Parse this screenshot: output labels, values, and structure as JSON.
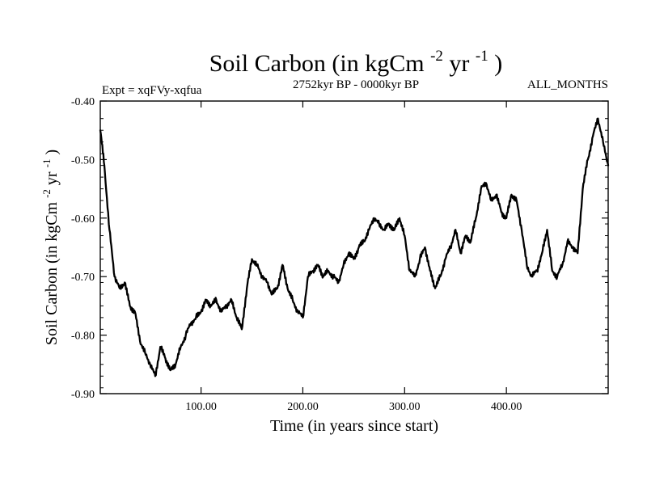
{
  "chart_data": {
    "type": "line",
    "title": "Soil Carbon (in kgCm",
    "title_sup1": "-2",
    "title_mid": "yr",
    "title_sup2": "-1",
    "title_end": ")",
    "subtitle": "2752kyr BP - 0000kyr BP",
    "left_label": "Expt = xqFVy-xqfua",
    "right_label": "ALL_MONTHS",
    "xlabel": "Time (in years since start)",
    "ylabel": "Soil Carbon (in kgCm",
    "ylabel_sup1": "-2",
    "ylabel_mid": "yr",
    "ylabel_sup2": "-1",
    "ylabel_end": ")",
    "xlim": [
      1,
      500
    ],
    "ylim": [
      -0.9,
      -0.4
    ],
    "x_ticks": [
      100,
      200,
      300,
      400
    ],
    "x_tick_labels": [
      "100.00",
      "200.00",
      "300.00",
      "400.00"
    ],
    "y_ticks": [
      -0.4,
      -0.5,
      -0.6,
      -0.7,
      -0.8,
      -0.9
    ],
    "y_tick_labels": [
      "-0.40",
      "-0.50",
      "-0.60",
      "-0.70",
      "-0.80",
      "-0.90"
    ],
    "color": "#000000",
    "series": [
      {
        "name": "Soil Carbon",
        "x": [
          1,
          5,
          10,
          15,
          20,
          25,
          30,
          35,
          40,
          45,
          50,
          55,
          60,
          65,
          70,
          75,
          80,
          85,
          90,
          95,
          100,
          105,
          110,
          115,
          120,
          125,
          130,
          135,
          140,
          145,
          150,
          155,
          160,
          165,
          170,
          175,
          180,
          185,
          190,
          195,
          200,
          205,
          210,
          215,
          220,
          225,
          230,
          235,
          240,
          245,
          250,
          255,
          260,
          265,
          270,
          275,
          280,
          285,
          290,
          295,
          300,
          305,
          310,
          315,
          320,
          325,
          330,
          335,
          340,
          345,
          350,
          355,
          360,
          365,
          370,
          375,
          380,
          385,
          390,
          395,
          400,
          405,
          410,
          415,
          420,
          425,
          430,
          435,
          440,
          445,
          450,
          455,
          460,
          465,
          470,
          475,
          480,
          485,
          490,
          495,
          500
        ],
        "values": [
          -0.45,
          -0.51,
          -0.62,
          -0.7,
          -0.72,
          -0.71,
          -0.75,
          -0.76,
          -0.81,
          -0.83,
          -0.85,
          -0.87,
          -0.82,
          -0.84,
          -0.86,
          -0.85,
          -0.82,
          -0.8,
          -0.78,
          -0.77,
          -0.76,
          -0.74,
          -0.75,
          -0.74,
          -0.76,
          -0.75,
          -0.74,
          -0.77,
          -0.79,
          -0.72,
          -0.67,
          -0.68,
          -0.7,
          -0.71,
          -0.73,
          -0.72,
          -0.68,
          -0.72,
          -0.74,
          -0.76,
          -0.77,
          -0.7,
          -0.69,
          -0.68,
          -0.7,
          -0.69,
          -0.7,
          -0.71,
          -0.68,
          -0.66,
          -0.67,
          -0.65,
          -0.64,
          -0.62,
          -0.6,
          -0.61,
          -0.62,
          -0.61,
          -0.62,
          -0.6,
          -0.63,
          -0.69,
          -0.7,
          -0.67,
          -0.65,
          -0.69,
          -0.72,
          -0.7,
          -0.67,
          -0.65,
          -0.62,
          -0.66,
          -0.63,
          -0.64,
          -0.6,
          -0.55,
          -0.54,
          -0.57,
          -0.56,
          -0.59,
          -0.6,
          -0.56,
          -0.57,
          -0.62,
          -0.68,
          -0.7,
          -0.69,
          -0.66,
          -0.62,
          -0.69,
          -0.7,
          -0.68,
          -0.64,
          -0.65,
          -0.66,
          -0.55,
          -0.5,
          -0.46,
          -0.43,
          -0.47,
          -0.51
        ]
      }
    ]
  }
}
